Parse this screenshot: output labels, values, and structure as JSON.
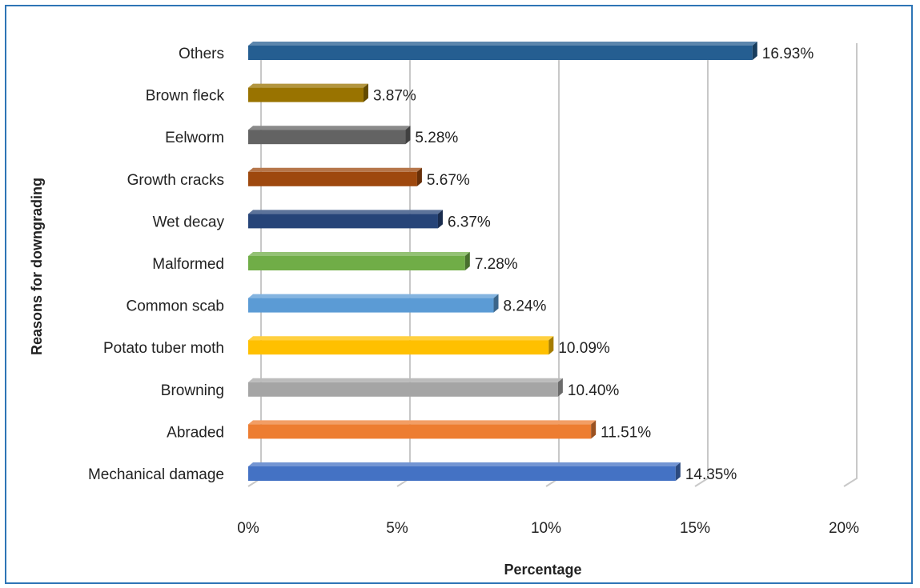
{
  "chart_data": {
    "type": "bar",
    "orientation": "horizontal",
    "title": "",
    "xlabel": "Percentage",
    "ylabel": "Reasons for downgrading",
    "xlim": [
      0,
      20
    ],
    "x_ticks": [
      "0%",
      "5%",
      "10%",
      "15%",
      "20%"
    ],
    "x_tick_values": [
      0,
      5,
      10,
      15,
      20
    ],
    "grid": "vertical gridlines on",
    "legend": "none",
    "categories": [
      "Mechanical damage",
      "Abraded",
      "Browning",
      "Potato tuber moth",
      "Common scab",
      "Malformed",
      "Wet decay",
      "Growth cracks",
      "Eelworm",
      "Brown fleck",
      "Others"
    ],
    "values": [
      14.35,
      11.51,
      10.4,
      10.09,
      8.24,
      7.28,
      6.37,
      5.67,
      5.28,
      3.87,
      16.93
    ],
    "data_labels": [
      "14.35%",
      "11.51%",
      "10.40%",
      "10.09%",
      "8.24%",
      "7.28%",
      "6.37%",
      "5.67%",
      "5.28%",
      "3.87%",
      "16.93%"
    ],
    "colors": [
      "#4472c4",
      "#ed7d31",
      "#a5a5a5",
      "#ffc000",
      "#5b9bd5",
      "#70ad47",
      "#264478",
      "#9e480e",
      "#636363",
      "#997300",
      "#255e91"
    ]
  }
}
